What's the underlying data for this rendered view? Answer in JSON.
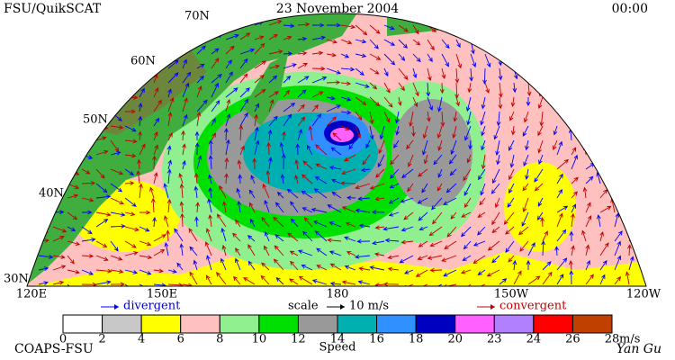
{
  "header": {
    "left": "FSU/QuikSCAT",
    "title": "23 November 2004",
    "time": "00:00"
  },
  "map": {
    "lat_labels": [
      "70N",
      "60N",
      "50N",
      "40N",
      "30N"
    ],
    "lon_labels": [
      "120E",
      "150E",
      "180",
      "150W",
      "120W"
    ]
  },
  "legend": {
    "divergent": "divergent",
    "scale": "scale",
    "scale_value": "10 m/s",
    "convergent": "convergent"
  },
  "colorbar": {
    "ticks": [
      0,
      2,
      4,
      6,
      8,
      10,
      12,
      14,
      16,
      18,
      20,
      23,
      24,
      26,
      28
    ],
    "unit": "m/s",
    "label": "Speed",
    "colors": [
      "#ffffff",
      "#c8c8c8",
      "#ffff00",
      "#ffc0c0",
      "#90f090",
      "#00e000",
      "#999999",
      "#00b0b0",
      "#3090ff",
      "#0000c0",
      "#ff60ff",
      "#b080ff",
      "#ff0000",
      "#c04000",
      "#000000"
    ]
  },
  "footer": {
    "left": "COAPS-FSU",
    "right": "Yan Gu"
  }
}
